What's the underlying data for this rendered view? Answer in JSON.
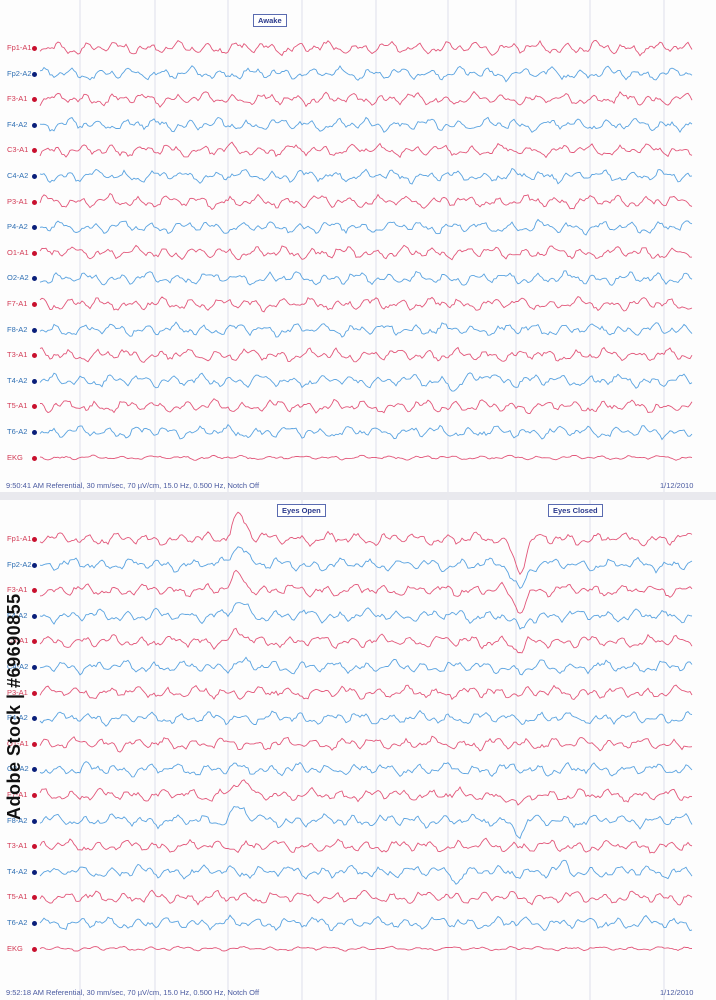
{
  "colors": {
    "red": "#e2577a",
    "blue": "#5aa3e0",
    "grid": "#c9cbe0"
  },
  "top": {
    "markers": [
      {
        "text": "Awake"
      }
    ],
    "channels": [
      {
        "label": "Fp1-A1",
        "color": "red"
      },
      {
        "label": "Fp2-A2",
        "color": "blue"
      },
      {
        "label": "F3-A1",
        "color": "red"
      },
      {
        "label": "F4-A2",
        "color": "blue"
      },
      {
        "label": "C3-A1",
        "color": "red"
      },
      {
        "label": "C4-A2",
        "color": "blue"
      },
      {
        "label": "P3-A1",
        "color": "red"
      },
      {
        "label": "P4-A2",
        "color": "blue"
      },
      {
        "label": "O1-A1",
        "color": "red"
      },
      {
        "label": "O2-A2",
        "color": "blue"
      },
      {
        "label": "F7-A1",
        "color": "red"
      },
      {
        "label": "F8-A2",
        "color": "blue"
      },
      {
        "label": "T3-A1",
        "color": "red"
      },
      {
        "label": "T4-A2",
        "color": "blue"
      },
      {
        "label": "T5-A1",
        "color": "red"
      },
      {
        "label": "T6-A2",
        "color": "blue"
      },
      {
        "label": "EKG",
        "color": "red"
      }
    ],
    "footer_left": "9:50:41 AM Referential, 30 mm/sec, 70 µV/cm, 15.0 Hz, 0.500 Hz, Notch Off",
    "footer_date": "1/12/2010"
  },
  "bottom": {
    "markers": [
      {
        "text": "Eyes Open"
      },
      {
        "text": "Eyes Closed"
      }
    ],
    "channels": [
      {
        "label": "Fp1-A1",
        "color": "red"
      },
      {
        "label": "Fp2-A2",
        "color": "blue"
      },
      {
        "label": "F3-A1",
        "color": "red"
      },
      {
        "label": "F4-A2",
        "color": "blue"
      },
      {
        "label": "C3-A1",
        "color": "red"
      },
      {
        "label": "C4-A2",
        "color": "blue"
      },
      {
        "label": "P3-A1",
        "color": "red"
      },
      {
        "label": "P4-A2",
        "color": "blue"
      },
      {
        "label": "O1-A1",
        "color": "red"
      },
      {
        "label": "O2-A2",
        "color": "blue"
      },
      {
        "label": "F7-A1",
        "color": "red"
      },
      {
        "label": "F8-A2",
        "color": "blue"
      },
      {
        "label": "T3-A1",
        "color": "red"
      },
      {
        "label": "T4-A2",
        "color": "blue"
      },
      {
        "label": "T5-A1",
        "color": "red"
      },
      {
        "label": "T6-A2",
        "color": "blue"
      },
      {
        "label": "EKG",
        "color": "red"
      }
    ],
    "footer_left": "9:52:18 AM Referential, 30 mm/sec, 70 µV/cm, 15.0 Hz, 0.500 Hz, Notch Off",
    "footer_date": "1/12/2010"
  },
  "watermark": "Adobe Stock | #69690855"
}
